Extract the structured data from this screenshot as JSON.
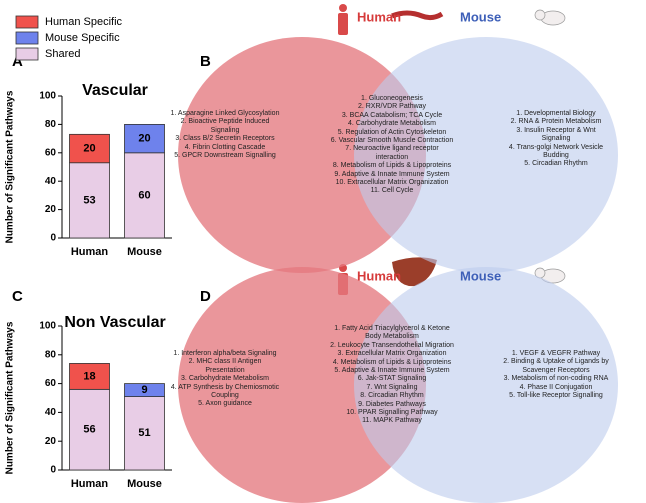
{
  "chart_data": [
    {
      "type": "bar",
      "stacked": true,
      "title": "Vascular",
      "y_label": "Number of Significant Pathways",
      "categories": [
        "Human",
        "Mouse"
      ],
      "series": [
        {
          "name": "Human Specific",
          "color": "#f0524c",
          "values": [
            20,
            null
          ]
        },
        {
          "name": "Mouse Specific",
          "color": "#6e82ec",
          "values": [
            null,
            20
          ]
        },
        {
          "name": "Shared",
          "color": "#e8cde6",
          "values": [
            53,
            60
          ]
        }
      ],
      "ylim": [
        0,
        100
      ],
      "yticks": [
        0,
        20,
        40,
        60,
        80,
        100
      ]
    },
    {
      "type": "bar",
      "stacked": true,
      "title": "Non Vascular",
      "y_label": "Number of Significant Pathways",
      "categories": [
        "Human",
        "Mouse"
      ],
      "series": [
        {
          "color": "#f0524c",
          "values": [
            18,
            null
          ]
        },
        {
          "color": "#6e82ec",
          "values": [
            null,
            9
          ]
        },
        {
          "color": "#e8cde6",
          "values": [
            56,
            51
          ]
        }
      ],
      "ylim": [
        0,
        100
      ],
      "yticks": [
        0,
        20,
        40,
        60,
        80,
        100
      ]
    }
  ],
  "panels": [
    "A",
    "B",
    "C",
    "D"
  ],
  "venn_diagrams": [
    {
      "left_label": "Human",
      "right_label": "Mouse",
      "left_items": [
        "1. Asparagine Linked Glycosylation",
        "2. Bioactive Peptide Induced Signaling",
        "3. Class B/2 Secretin Receptors",
        "4. Fibrin Clotting Cascade",
        "5. GPCR Downstream Signalling"
      ],
      "shared_items": [
        "1. Gluconeogenesis",
        "2. RXR/VDR Pathway",
        "3. BCAA Catabolism; TCA Cycle",
        "4. Carbohydrate Metabolism",
        "5. Regulation of Actin Cytoskeleton",
        "6. Vascular Smooth Muscle Contraction",
        "7. Neuroactive ligand receptor interaction",
        "8. Metabolism of Lipids & Lipoproteins",
        "9. Adaptive & Innate Immune System",
        "10. Extracellular Matrix Organization",
        "11. Cell Cycle"
      ],
      "right_items": [
        "1. Developmental Biology",
        "2. RNA & Protein Metabolism",
        "3. Insulin Receptor  & Wnt Signaling",
        "4. Trans-golgi Network Vesicle Budding",
        "5. Circadian Rhythm"
      ]
    },
    {
      "left_label": "Human",
      "right_label": "Mouse",
      "left_items": [
        "1. Interferon alpha/beta Signaling",
        "2. MHC class II Antigen Presentation",
        "3. Carbohydrate Metabolism",
        "4. ATP Synthesis by Chemiosmotic Coupling",
        "5. Axon guidance"
      ],
      "shared_items": [
        "1. Fatty Acid Triacylglycerol & Ketone Body Metabolism",
        "2. Leukocyte Transendothelial Migration",
        "3. Extracellular Matrix Organization",
        "4. Metabolism of Lipids & Lipoproteins",
        "5. Adaptive & Innate Immune System",
        "6. Jak-STAT Signaling",
        "7. Wnt Signaling",
        "8. Circadian Rhythm",
        "9. Diabetes Pathways",
        "10. PPAR Signalling Pathway",
        "11. MAPK Pathway"
      ],
      "right_items": [
        "1. VEGF & VEGFR Pathway",
        "2. Binding & Uptake of Ligands by Scavenger Receptors",
        "3. Metabolism of non-coding RNA",
        "4. Phase II Conjugation",
        "5. Toll-like Receptor Signalling"
      ]
    }
  ]
}
